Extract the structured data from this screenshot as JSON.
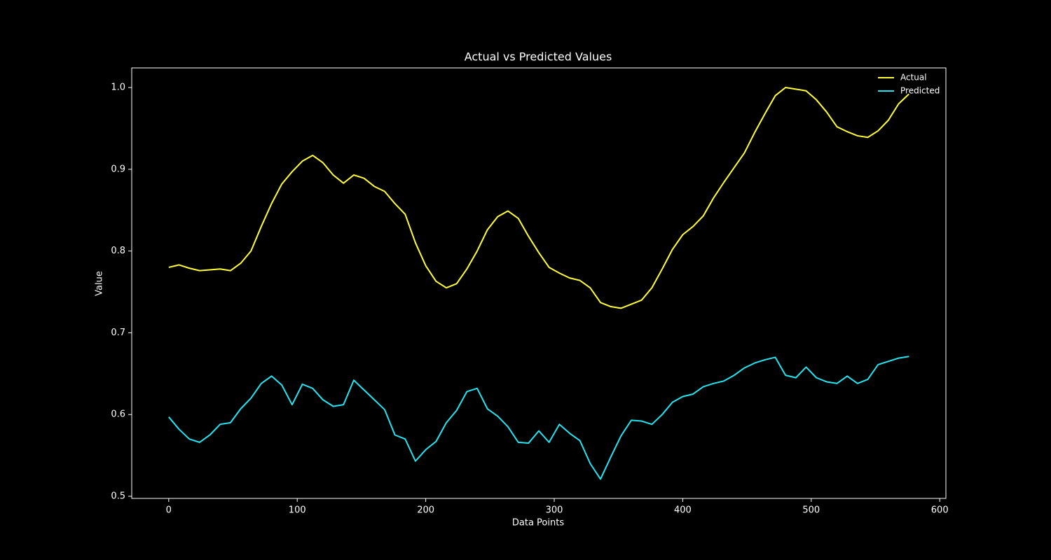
{
  "chart_data": {
    "type": "line",
    "title": "Actual vs Predicted Values",
    "x_label": "Data Points",
    "y_label": "Value",
    "x": [
      0,
      8,
      16,
      24,
      32,
      40,
      48,
      56,
      64,
      72,
      80,
      88,
      96,
      104,
      112,
      120,
      128,
      136,
      144,
      152,
      160,
      168,
      176,
      184,
      192,
      200,
      208,
      216,
      224,
      232,
      240,
      248,
      256,
      264,
      272,
      280,
      288,
      296,
      304,
      312,
      320,
      328,
      336,
      344,
      352,
      360,
      368,
      376,
      384,
      392,
      400,
      408,
      416,
      424,
      432,
      440,
      448,
      456,
      464,
      472,
      480,
      488,
      496,
      504,
      512,
      520,
      528,
      536,
      544,
      552,
      560,
      568,
      576
    ],
    "series": [
      {
        "name": "Actual",
        "color": "#ffff33",
        "values": [
          0.78,
          0.783,
          0.779,
          0.776,
          0.777,
          0.778,
          0.776,
          0.785,
          0.8,
          0.83,
          0.858,
          0.882,
          0.897,
          0.91,
          0.917,
          0.908,
          0.893,
          0.883,
          0.893,
          0.889,
          0.879,
          0.873,
          0.858,
          0.845,
          0.81,
          0.782,
          0.763,
          0.755,
          0.76,
          0.778,
          0.8,
          0.826,
          0.842,
          0.849,
          0.84,
          0.818,
          0.798,
          0.78,
          0.773,
          0.767,
          0.764,
          0.755,
          0.737,
          0.732,
          0.73,
          0.735,
          0.74,
          0.755,
          0.778,
          0.802,
          0.82,
          0.83,
          0.843,
          0.865,
          0.884,
          0.902,
          0.92,
          0.945,
          0.968,
          0.99,
          1.0,
          0.998,
          0.996,
          0.985,
          0.97,
          0.952,
          0.946,
          0.941,
          0.939,
          0.947,
          0.96,
          0.98,
          0.992
        ]
      },
      {
        "name": "Predicted",
        "color": "#22e5f0",
        "values": [
          0.597,
          0.582,
          0.57,
          0.566,
          0.575,
          0.588,
          0.59,
          0.607,
          0.62,
          0.638,
          0.647,
          0.636,
          0.612,
          0.637,
          0.632,
          0.618,
          0.61,
          0.612,
          0.642,
          0.63,
          0.618,
          0.606,
          0.575,
          0.57,
          0.543,
          0.557,
          0.567,
          0.59,
          0.605,
          0.628,
          0.632,
          0.607,
          0.598,
          0.585,
          0.566,
          0.565,
          0.58,
          0.566,
          0.588,
          0.577,
          0.568,
          0.54,
          0.521,
          0.548,
          0.574,
          0.593,
          0.592,
          0.588,
          0.6,
          0.615,
          0.622,
          0.625,
          0.634,
          0.638,
          0.641,
          0.648,
          0.657,
          0.663,
          0.667,
          0.67,
          0.648,
          0.645,
          0.658,
          0.645,
          0.64,
          0.638,
          0.647,
          0.638,
          0.643,
          0.661,
          0.665,
          0.669,
          0.671
        ]
      }
    ],
    "xlim": [
      -28.8,
      604.8
    ],
    "ylim": [
      0.4974,
      1.024
    ],
    "xticks": [
      0,
      100,
      200,
      300,
      400,
      500,
      600
    ],
    "yticks": [
      0.5,
      0.6,
      0.7,
      0.8,
      0.9,
      {
        "value": 1,
        "label": "1.0"
      }
    ],
    "legend": "upper right"
  }
}
